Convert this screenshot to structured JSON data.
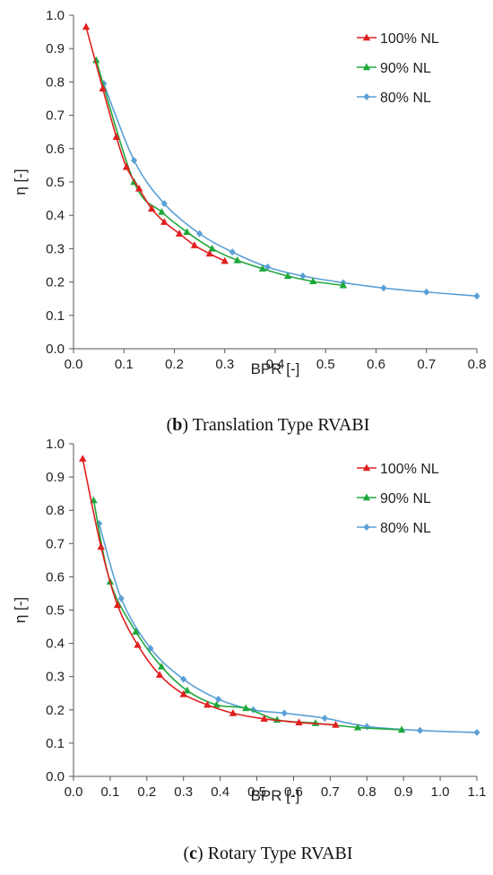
{
  "chart_data": [
    {
      "type": "line",
      "panel_label": "b",
      "caption": "Translation Type RVABI",
      "xlabel": "BPR [-]",
      "ylabel": "η [-]",
      "xlim": [
        0,
        0.8
      ],
      "ylim": [
        0,
        1.0
      ],
      "xticks": [
        "0.0",
        "0.1",
        "0.2",
        "0.3",
        "0.4",
        "0.5",
        "0.6",
        "0.7",
        "0.8"
      ],
      "yticks": [
        "0.0",
        "0.1",
        "0.2",
        "0.3",
        "0.4",
        "0.5",
        "0.6",
        "0.7",
        "0.8",
        "0.9",
        "1.0"
      ],
      "grid": false,
      "legend_position": "top-right",
      "series": [
        {
          "name": "100% NL",
          "color": "#e02020",
          "marker": "triangle",
          "x": [
            0.025,
            0.058,
            0.085,
            0.105,
            0.13,
            0.155,
            0.18,
            0.21,
            0.24,
            0.27,
            0.3
          ],
          "y": [
            0.965,
            0.78,
            0.635,
            0.545,
            0.48,
            0.42,
            0.38,
            0.345,
            0.31,
            0.285,
            0.263
          ]
        },
        {
          "name": "90% NL",
          "color": "#1fa83c",
          "marker": "triangle",
          "x": [
            0.045,
            0.12,
            0.175,
            0.225,
            0.275,
            0.325,
            0.375,
            0.425,
            0.475,
            0.535
          ],
          "y": [
            0.865,
            0.5,
            0.41,
            0.35,
            0.3,
            0.265,
            0.24,
            0.218,
            0.202,
            0.19
          ]
        },
        {
          "name": "80% NL",
          "color": "#5aa0d6",
          "marker": "diamond",
          "x": [
            0.06,
            0.12,
            0.18,
            0.25,
            0.315,
            0.385,
            0.455,
            0.535,
            0.615,
            0.7,
            0.8
          ],
          "y": [
            0.795,
            0.565,
            0.435,
            0.345,
            0.29,
            0.245,
            0.218,
            0.198,
            0.182,
            0.17,
            0.158
          ]
        }
      ]
    },
    {
      "type": "line",
      "panel_label": "c",
      "caption": "Rotary Type RVABI",
      "xlabel": "BPR [-]",
      "ylabel": "η [-]",
      "xlim": [
        0,
        1.1
      ],
      "ylim": [
        0,
        1.0
      ],
      "xticks": [
        "0.0",
        "0.1",
        "0.2",
        "0.3",
        "0.4",
        "0.5",
        "0.6",
        "0.7",
        "0.8",
        "0.9",
        "1.0",
        "1.1"
      ],
      "yticks": [
        "0.0",
        "0.1",
        "0.2",
        "0.3",
        "0.4",
        "0.5",
        "0.6",
        "0.7",
        "0.8",
        "0.9",
        "1.0"
      ],
      "grid": false,
      "legend_position": "top-right",
      "series": [
        {
          "name": "100% NL",
          "color": "#e02020",
          "marker": "triangle",
          "x": [
            0.025,
            0.075,
            0.12,
            0.175,
            0.235,
            0.3,
            0.365,
            0.435,
            0.52,
            0.615,
            0.715
          ],
          "y": [
            0.955,
            0.69,
            0.515,
            0.395,
            0.305,
            0.247,
            0.215,
            0.19,
            0.173,
            0.162,
            0.155
          ]
        },
        {
          "name": "90% NL",
          "color": "#1fa83c",
          "marker": "triangle",
          "x": [
            0.055,
            0.1,
            0.17,
            0.24,
            0.31,
            0.39,
            0.47,
            0.555,
            0.66,
            0.775,
            0.895
          ],
          "y": [
            0.83,
            0.585,
            0.435,
            0.33,
            0.258,
            0.215,
            0.205,
            0.17,
            0.16,
            0.147,
            0.14
          ]
        },
        {
          "name": "80% NL",
          "color": "#5aa0d6",
          "marker": "diamond",
          "x": [
            0.07,
            0.13,
            0.21,
            0.3,
            0.395,
            0.49,
            0.575,
            0.685,
            0.8,
            0.945,
            1.1
          ],
          "y": [
            0.76,
            0.535,
            0.385,
            0.292,
            0.232,
            0.2,
            0.19,
            0.175,
            0.15,
            0.138,
            0.132
          ]
        }
      ]
    }
  ]
}
